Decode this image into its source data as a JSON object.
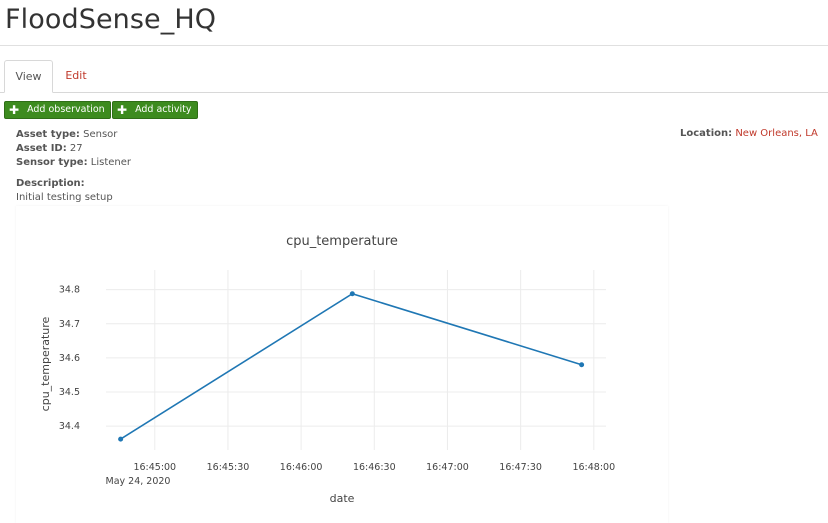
{
  "page": {
    "title": "FloodSense_HQ"
  },
  "tabs": [
    {
      "label": "View",
      "active": true
    },
    {
      "label": "Edit",
      "active": false
    }
  ],
  "actions": {
    "add_observation": "Add observation",
    "add_activity": "Add activity"
  },
  "asset": {
    "asset_type_label": "Asset type:",
    "asset_type": "Sensor",
    "asset_id_label": "Asset ID:",
    "asset_id": "27",
    "sensor_type_label": "Sensor type:",
    "sensor_type": "Listener",
    "description_label": "Description:",
    "description": "Initial testing setup",
    "location_label": "Location:",
    "location": "New Orleans, LA"
  },
  "colors": {
    "accent_green": "#3d8b1f",
    "link_red": "#c0392b",
    "line_blue": "#1f77b4"
  },
  "chart_data": {
    "type": "line",
    "title": "cpu_temperature",
    "xlabel": "date",
    "ylabel": "cpu_temperature",
    "x_date_label": "May 24, 2020",
    "x": [
      "16:44:46",
      "16:46:21",
      "16:47:55"
    ],
    "series": [
      {
        "values": [
          34.362,
          34.788,
          34.58
        ]
      }
    ],
    "x_ticks": [
      "16:45:00",
      "16:45:30",
      "16:46:00",
      "16:46:30",
      "16:47:00",
      "16:47:30",
      "16:48:00"
    ],
    "y_ticks": [
      34.4,
      34.5,
      34.6,
      34.7,
      34.8
    ],
    "grid": true
  }
}
